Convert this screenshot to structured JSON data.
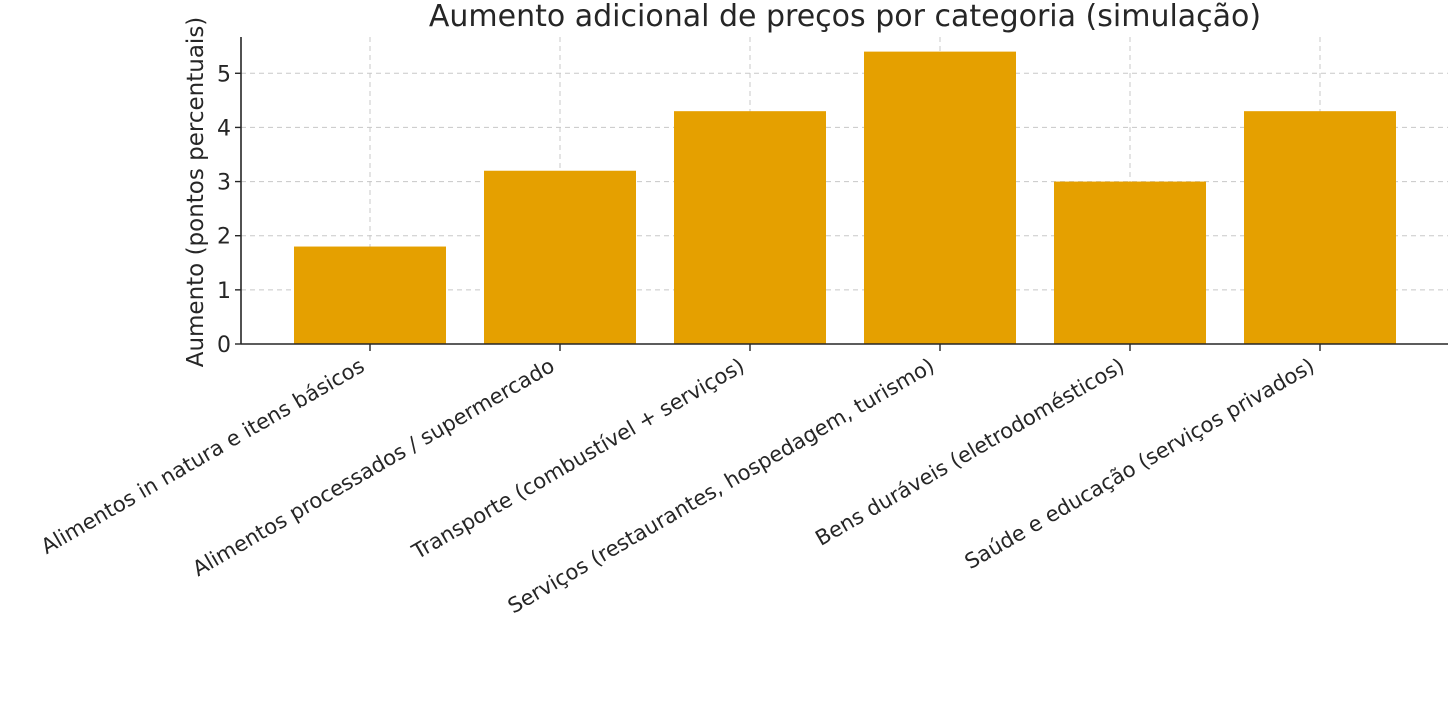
{
  "chart_data": {
    "type": "bar",
    "title": "Aumento adicional de preços por categoria (simulação)",
    "xlabel": "",
    "ylabel": "Aumento (pontos percentuais)",
    "categories": [
      "Alimentos in natura e itens básicos",
      "Alimentos processados / supermercado",
      "Transporte (combustível + serviços)",
      "Serviços (restaurantes, hospedagem, turismo)",
      "Bens duráveis (eletrodomésticos)",
      "Saúde e educação (serviços privados)"
    ],
    "values": [
      1.8,
      3.2,
      4.3,
      5.4,
      3.0,
      4.3
    ],
    "ylim": [
      0,
      5.67
    ],
    "yticks": [
      0,
      1,
      2,
      3,
      4,
      5
    ],
    "grid": true,
    "bar_color": "#E5A000"
  }
}
